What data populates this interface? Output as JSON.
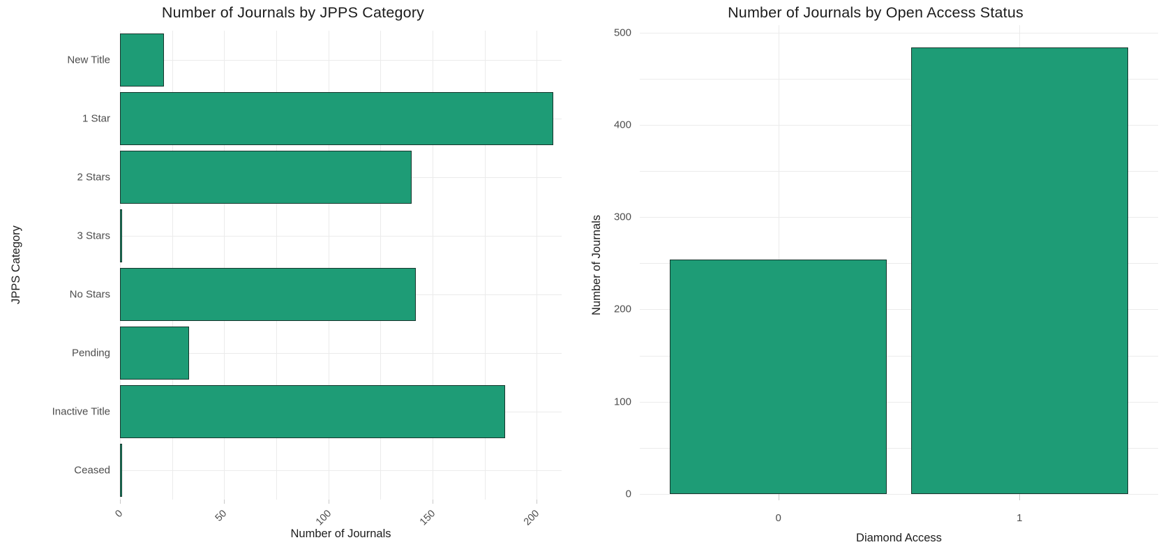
{
  "page": {
    "background": "#ffffff"
  },
  "colors": {
    "bar_fill": "#1e9c76",
    "bar_stroke": "#16352c",
    "grid": "#ebebeb",
    "tick_text": "#4d4d4d",
    "title_text": "#1c1c1c"
  },
  "chart_data": [
    {
      "type": "bar",
      "orientation": "horizontal",
      "title": "Number of Journals by JPPS Category",
      "xlabel": "Number of Journals",
      "ylabel": "JPPS Category",
      "categories": [
        "New Title",
        "1 Star",
        "2 Stars",
        "3 Stars",
        "No Stars",
        "Pending",
        "Inactive Title",
        "Ceased"
      ],
      "values": [
        21,
        208,
        140,
        1,
        142,
        33,
        185,
        1
      ],
      "x_ticks": [
        0,
        50,
        100,
        150,
        200
      ],
      "x_minor_step": 25,
      "xlim": [
        0,
        212
      ],
      "grid": true,
      "tick_angle": 45,
      "legend": "none"
    },
    {
      "type": "bar",
      "orientation": "vertical",
      "title": "Number of Journals by Open Access Status",
      "xlabel": "Diamond Access",
      "ylabel": "Number of Journals",
      "categories": [
        "0",
        "1"
      ],
      "values": [
        254,
        484
      ],
      "y_ticks": [
        0,
        100,
        200,
        300,
        400,
        500
      ],
      "y_minor_step": 50,
      "ylim": [
        0,
        508
      ],
      "grid": true,
      "tick_angle": 0,
      "legend": "none"
    }
  ]
}
